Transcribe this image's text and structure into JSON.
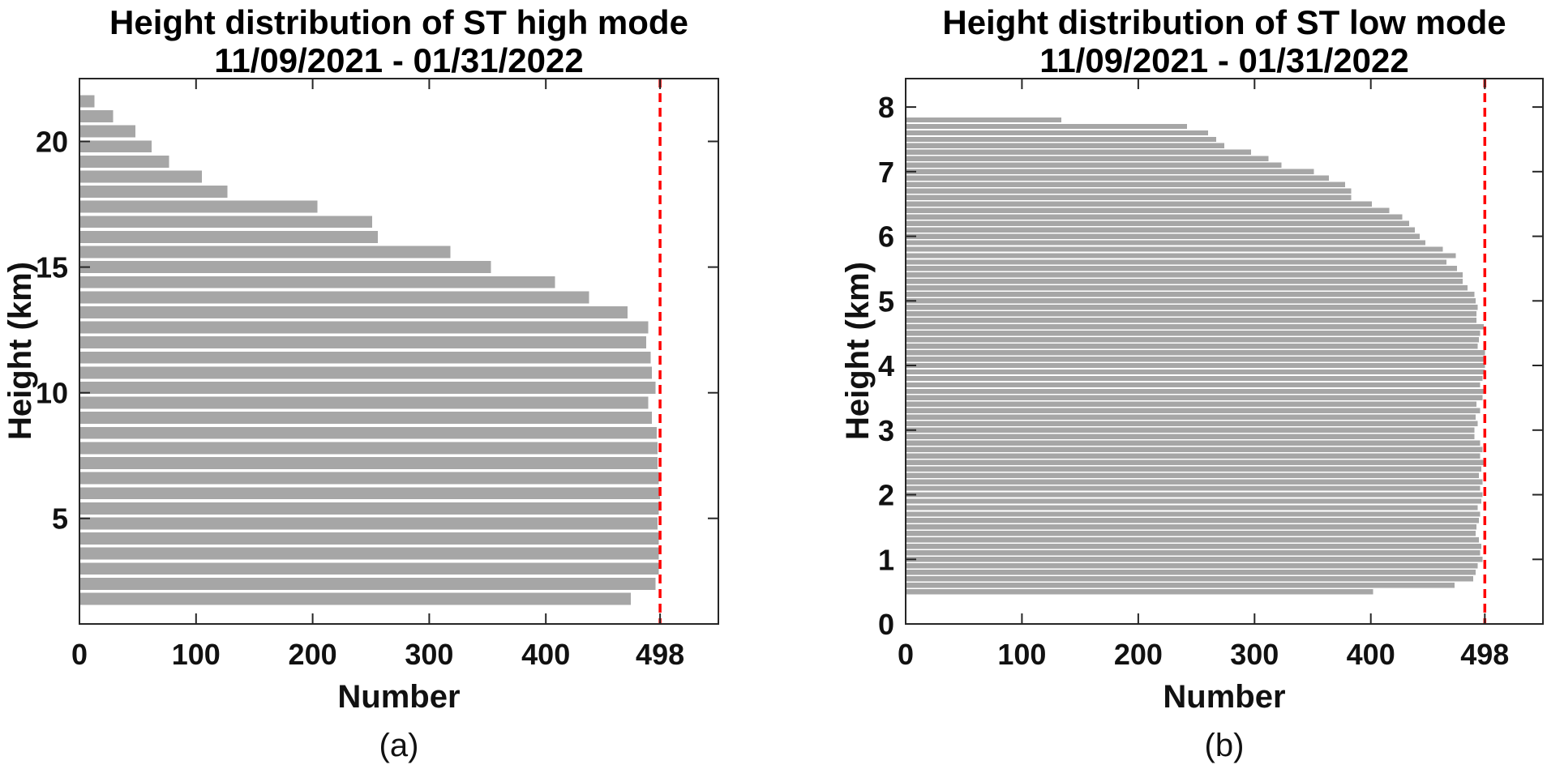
{
  "figure": {
    "background": "#ffffff",
    "bar_color": "#a6a6a6",
    "axis_color": "#262626",
    "text_color": "#111111",
    "refline_color": "#ff0000"
  },
  "chart_data": [
    {
      "type": "bar",
      "orientation": "horizontal",
      "panel": "a",
      "title_line1": "Height distribution of ST high mode",
      "title_line2": "11/09/2021 - 01/31/2022",
      "xlabel": "Number",
      "ylabel": "Height (km)",
      "sublabel": "(a)",
      "legend": "none",
      "grid": false,
      "xlim": [
        0,
        548
      ],
      "ylim": [
        0.8,
        22.5
      ],
      "x_ticks": [
        0,
        100,
        200,
        300,
        400,
        498
      ],
      "x_tick_labels": [
        "0",
        "100",
        "200",
        "300",
        "400",
        "498"
      ],
      "y_ticks": [
        5,
        10,
        15,
        20
      ],
      "y_tick_labels": [
        "5",
        "10",
        "15",
        "20"
      ],
      "refline_value": 498,
      "refline_style": "dashed",
      "bar_width_km": 0.48,
      "heights_km": [
        1.8,
        2.4,
        3.0,
        3.6,
        4.2,
        4.8,
        5.4,
        6.0,
        6.6,
        7.2,
        7.8,
        8.4,
        9.0,
        9.6,
        10.2,
        10.8,
        11.4,
        12.0,
        12.6,
        13.2,
        13.8,
        14.4,
        15.0,
        15.6,
        16.2,
        16.8,
        17.4,
        18.0,
        18.6,
        19.2,
        19.8,
        20.4,
        21.0,
        21.6
      ],
      "values": [
        473,
        494,
        497,
        497,
        497,
        496,
        497,
        498,
        497,
        496,
        496,
        495,
        491,
        488,
        494,
        491,
        490,
        486,
        488,
        470,
        437,
        408,
        353,
        318,
        256,
        251,
        204,
        127,
        105,
        77,
        62,
        48,
        29,
        13
      ]
    },
    {
      "type": "bar",
      "orientation": "horizontal",
      "panel": "b",
      "title_line1": "Height distribution of ST low mode",
      "title_line2": "11/09/2021 - 01/31/2022",
      "xlabel": "Number",
      "ylabel": "Height (km)",
      "sublabel": "(b)",
      "legend": "none",
      "grid": false,
      "xlim": [
        0,
        548
      ],
      "ylim": [
        0,
        8.44
      ],
      "x_ticks": [
        0,
        100,
        200,
        300,
        400,
        498
      ],
      "x_tick_labels": [
        "0",
        "100",
        "200",
        "300",
        "400",
        "498"
      ],
      "y_ticks": [
        0,
        1,
        2,
        3,
        4,
        5,
        6,
        7,
        8
      ],
      "y_tick_labels": [
        "0",
        "1",
        "2",
        "3",
        "4",
        "5",
        "6",
        "7",
        "8"
      ],
      "refline_value": 498,
      "refline_style": "dashed",
      "bar_width_km": 0.08,
      "heights_km": [
        0.5,
        0.6,
        0.7,
        0.8,
        0.9,
        1.0,
        1.1,
        1.2,
        1.3,
        1.4,
        1.5,
        1.6,
        1.7,
        1.8,
        1.9,
        2.0,
        2.1,
        2.2,
        2.3,
        2.4,
        2.5,
        2.6,
        2.7,
        2.8,
        2.9,
        3.0,
        3.1,
        3.2,
        3.3,
        3.4,
        3.5,
        3.6,
        3.7,
        3.8,
        3.9,
        4.0,
        4.1,
        4.2,
        4.3,
        4.4,
        4.5,
        4.6,
        4.7,
        4.8,
        4.9,
        5.0,
        5.1,
        5.2,
        5.3,
        5.4,
        5.5,
        5.6,
        5.7,
        5.8,
        5.9,
        6.0,
        6.1,
        6.2,
        6.3,
        6.4,
        6.5,
        6.6,
        6.7,
        6.8,
        6.9,
        7.0,
        7.1,
        7.2,
        7.3,
        7.4,
        7.5,
        7.6,
        7.7,
        7.8
      ],
      "values": [
        402,
        472,
        488,
        490,
        492,
        496,
        494,
        495,
        493,
        490,
        491,
        493,
        494,
        492,
        495,
        496,
        494,
        496,
        493,
        495,
        497,
        494,
        496,
        494,
        489,
        489,
        492,
        490,
        494,
        491,
        496,
        497,
        494,
        496,
        498,
        498,
        498,
        498,
        492,
        493,
        494,
        497,
        491,
        491,
        492,
        490,
        489,
        483,
        479,
        479,
        474,
        465,
        473,
        462,
        447,
        442,
        438,
        433,
        427,
        416,
        401,
        383,
        383,
        378,
        364,
        351,
        323,
        312,
        297,
        274,
        267,
        260,
        242,
        134
      ]
    }
  ]
}
